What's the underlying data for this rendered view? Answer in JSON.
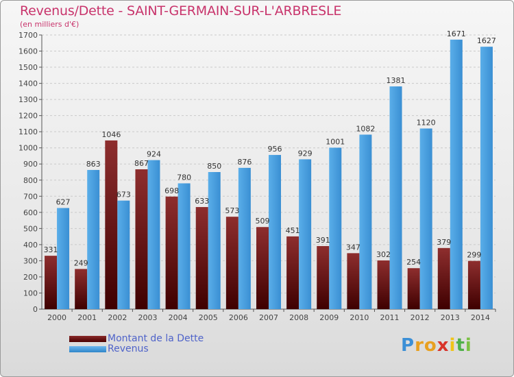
{
  "title": "Revenus/Dette - SAINT-GERMAIN-SUR-L'ARBRESLE",
  "subtitle": "(en milliers d'€)",
  "legend": {
    "dette": "Montant de la Dette",
    "revenus": "Revenus"
  },
  "logo": {
    "letters": [
      "P",
      "r",
      "o",
      "x",
      "i",
      "t",
      "i"
    ],
    "colors": [
      "#3b8fd6",
      "#e8a020",
      "#e8a020",
      "#d8342a",
      "#f0c419",
      "#4fb04a",
      "#7ac143"
    ]
  },
  "chart_data": {
    "type": "bar",
    "categories": [
      "2000",
      "2001",
      "2002",
      "2003",
      "2004",
      "2005",
      "2006",
      "2007",
      "2008",
      "2009",
      "2010",
      "2011",
      "2012",
      "2013",
      "2014"
    ],
    "series": [
      {
        "name": "Montant de la Dette",
        "values": [
          331,
          249,
          1046,
          867,
          698,
          633,
          573,
          509,
          451,
          391,
          347,
          302,
          254,
          379,
          299
        ],
        "color": "#7a1a1a"
      },
      {
        "name": "Revenus",
        "values": [
          627,
          863,
          673,
          924,
          780,
          850,
          876,
          956,
          929,
          1001,
          1082,
          1381,
          1120,
          1671,
          1627
        ],
        "color": "#4aa3e3"
      }
    ],
    "ylim": [
      0,
      1700
    ],
    "yticks": [
      0,
      100,
      200,
      300,
      400,
      500,
      600,
      700,
      800,
      900,
      1000,
      1100,
      1200,
      1300,
      1400,
      1500,
      1600,
      1700
    ],
    "grid": true,
    "legend_position": "bottom-left"
  }
}
